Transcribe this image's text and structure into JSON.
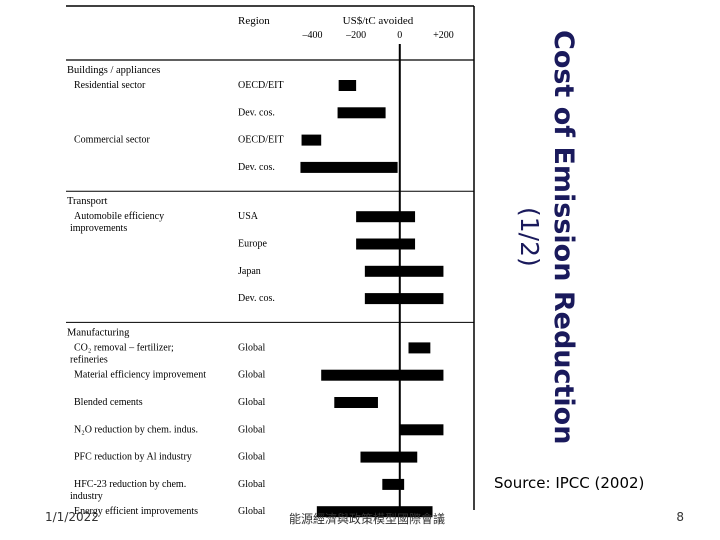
{
  "slide": {
    "title_line1": "Cost of Emission Reduction",
    "title_line2": "(1/2)",
    "source": "Source: IPCC (2002)",
    "date": "1/1/2022",
    "conference": "能源經濟與政策模型國際會議",
    "page_number": "8"
  },
  "chart_data": {
    "type": "bar",
    "orientation": "horizontal",
    "header_left": "",
    "header_region": "Region",
    "axis_label": "US$/tC avoided",
    "ticks": [
      {
        "value": -400,
        "label": "–400"
      },
      {
        "value": -200,
        "label": "–200"
      },
      {
        "value": 0,
        "label": "0"
      },
      {
        "value": 200,
        "label": "+200"
      }
    ],
    "xlim": [
      -480,
      340
    ],
    "groups": [
      "Buildings / appliances",
      "Transport",
      "Manufacturing"
    ],
    "rows": [
      {
        "group": "Buildings / appliances",
        "label": [
          "Residential sector"
        ],
        "region": "OECD/EIT",
        "range": [
          -280,
          -200
        ]
      },
      {
        "group": "Buildings / appliances",
        "label": [],
        "region": "Dev. cos.",
        "range": [
          -285,
          -65
        ]
      },
      {
        "group": "Buildings / appliances",
        "label": [
          "Commercial sector"
        ],
        "region": "OECD/EIT",
        "range": [
          -450,
          -360
        ]
      },
      {
        "group": "Buildings / appliances",
        "label": [],
        "region": "Dev. cos.",
        "range": [
          -455,
          -10
        ]
      },
      {
        "group": "Transport",
        "label": [
          "Automobile efficiency",
          "improvements"
        ],
        "region": "USA",
        "range": [
          -200,
          70
        ]
      },
      {
        "group": "Transport",
        "label": [],
        "region": "Europe",
        "range": [
          -200,
          70
        ]
      },
      {
        "group": "Transport",
        "label": [],
        "region": "Japan",
        "range": [
          -160,
          200
        ]
      },
      {
        "group": "Transport",
        "label": [],
        "region": "Dev. cos.",
        "range": [
          -160,
          200
        ]
      },
      {
        "group": "Manufacturing",
        "label": [
          "CO₂ removal – fertilizer;",
          "refineries"
        ],
        "region": "Global",
        "range": [
          40,
          140
        ]
      },
      {
        "group": "Manufacturing",
        "label": [
          "Material efficiency improvement"
        ],
        "region": "Global",
        "range": [
          -360,
          200
        ]
      },
      {
        "group": "Manufacturing",
        "label": [
          "Blended cements"
        ],
        "region": "Global",
        "range": [
          -300,
          -100
        ]
      },
      {
        "group": "Manufacturing",
        "label": [
          "N₂O reduction by chem. indus."
        ],
        "region": "Global",
        "range": [
          0,
          200
        ]
      },
      {
        "group": "Manufacturing",
        "label": [
          "PFC reduction by Al industry"
        ],
        "region": "Global",
        "range": [
          -180,
          80
        ]
      },
      {
        "group": "Manufacturing",
        "label": [
          "HFC-23 reduction by chem.",
          "industry"
        ],
        "region": "Global",
        "range": [
          -80,
          20
        ]
      },
      {
        "group": "Manufacturing",
        "label": [
          "Energy efficient improvements"
        ],
        "region": "Global",
        "range": [
          -380,
          150
        ]
      }
    ]
  }
}
